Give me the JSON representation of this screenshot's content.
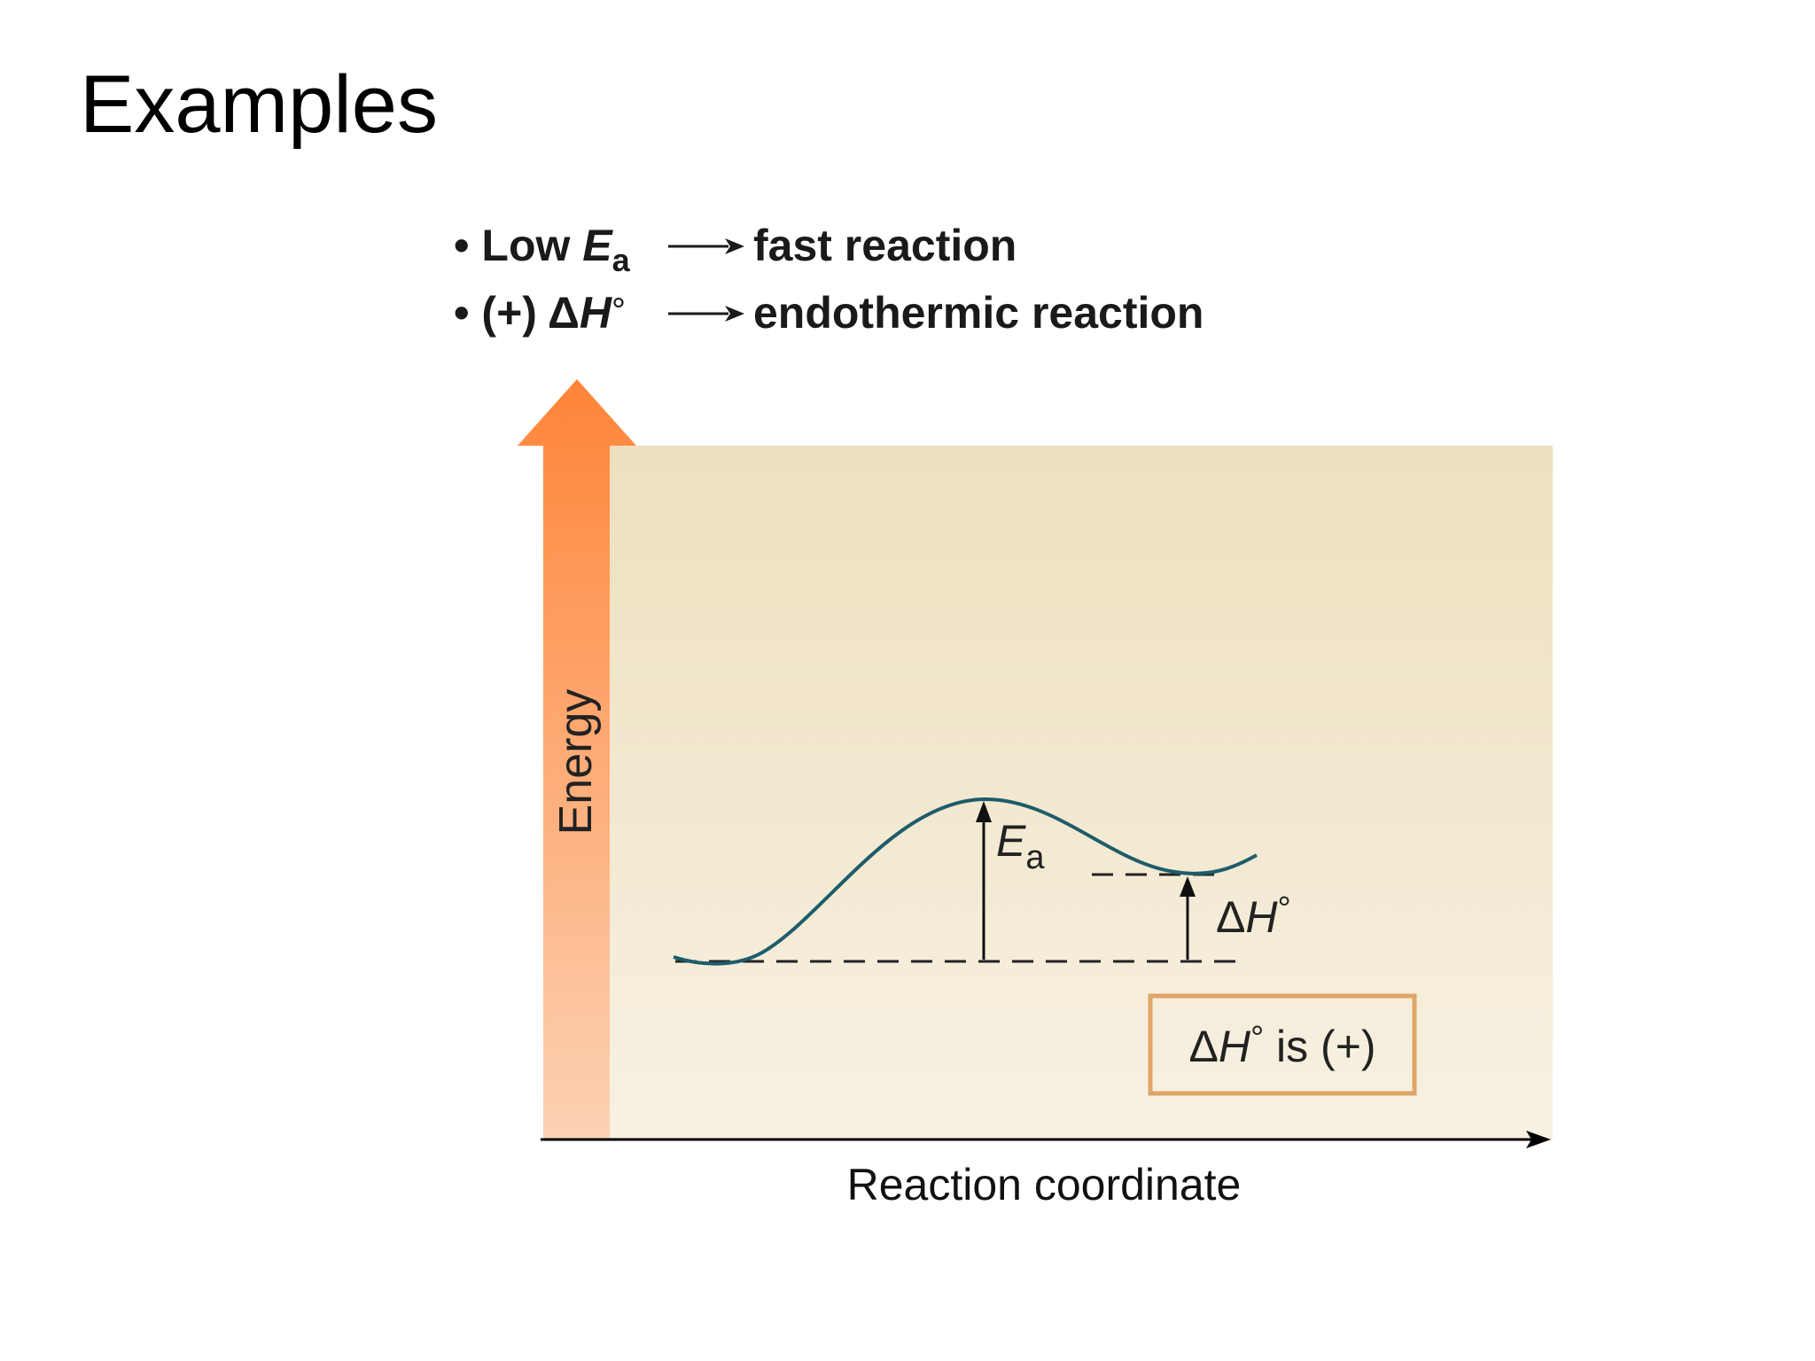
{
  "slide": {
    "title": "Examples"
  },
  "bullets": [
    {
      "symbol": "•",
      "prefix": "Low ",
      "var": "E",
      "sub": "a",
      "deg": "",
      "result": "fast reaction"
    },
    {
      "symbol": "•",
      "prefix": "(+) Δ",
      "var": "H",
      "sub": "",
      "deg": "°",
      "result": "endothermic reaction"
    }
  ],
  "diagram": {
    "y_axis_label": "Energy",
    "x_axis_label": "Reaction coordinate",
    "ea_label": {
      "var": "E",
      "sub": "a"
    },
    "dh_label": {
      "delta": "Δ",
      "var": "H",
      "deg": "°"
    },
    "result_box": {
      "delta": "Δ",
      "var": "H",
      "deg": "°",
      "text": " is (+)"
    },
    "colors": {
      "background_top": "#ede0bf",
      "background_bottom": "#f8f1e2",
      "arrow_top": "#ff8438",
      "arrow_bottom": "#fcd2b4",
      "curve": "#1f5c6a",
      "box_border": "#e0a568",
      "axis": "#000000"
    },
    "profile": {
      "reactant_energy": 0,
      "transition_state_energy": 100,
      "product_energy": 55,
      "units": "relative"
    }
  }
}
